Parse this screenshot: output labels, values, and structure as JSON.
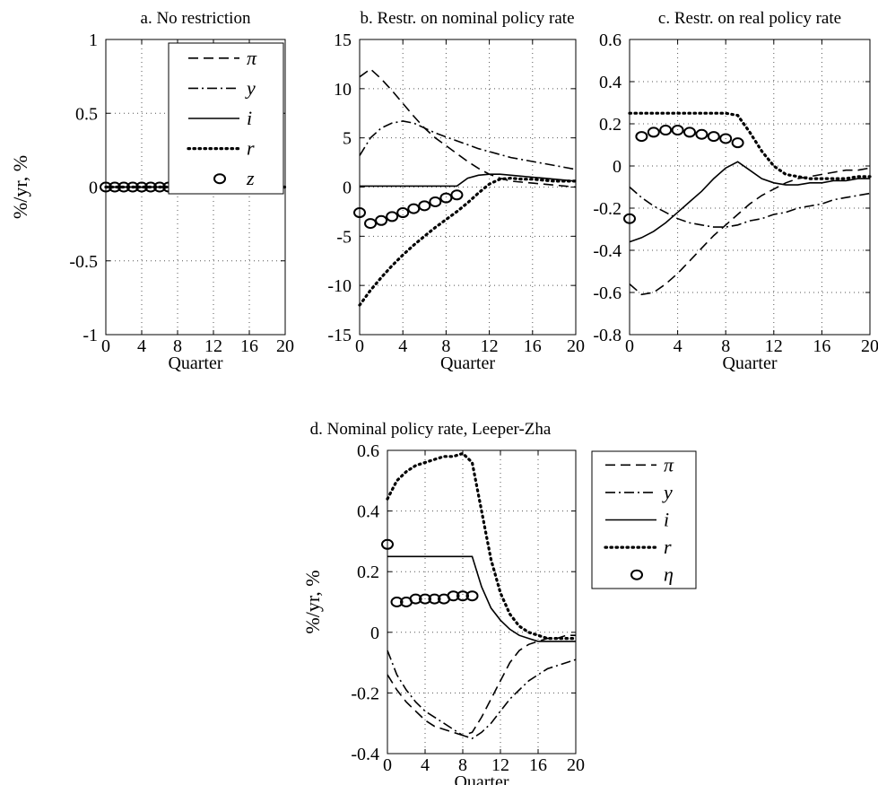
{
  "figure": {
    "colors": {
      "line": "#000000",
      "grid": "#555555",
      "background": "#ffffff"
    }
  },
  "chart_data": [
    {
      "id": "a",
      "type": "line",
      "title": "a. No restriction",
      "xlabel": "Quarter",
      "ylabel": "%/yr, %",
      "xlim": [
        0,
        20
      ],
      "ylim": [
        -1,
        1
      ],
      "xticks": [
        "0",
        "4",
        "8",
        "12",
        "16",
        "20"
      ],
      "yticks": [
        "-1",
        "-0.5",
        "0",
        "0.5",
        "1"
      ],
      "grid": true,
      "legend": {
        "placement": "top-right",
        "entries": [
          "π",
          "y",
          "i",
          "r",
          "z"
        ]
      },
      "x": [
        0,
        1,
        2,
        3,
        4,
        5,
        6,
        7,
        8,
        9,
        10,
        11,
        12,
        13,
        14,
        15,
        16,
        17,
        18,
        19,
        20
      ],
      "series": [
        {
          "name": "π",
          "style": "dash",
          "values": [
            0,
            0,
            0,
            0,
            0,
            0,
            0,
            0,
            0,
            0,
            0,
            0,
            0,
            0,
            0,
            0,
            0,
            0,
            0,
            0,
            0
          ]
        },
        {
          "name": "y",
          "style": "dashdot",
          "values": [
            0,
            0,
            0,
            0,
            0,
            0,
            0,
            0,
            0,
            0,
            0,
            0,
            0,
            0,
            0,
            0,
            0,
            0,
            0,
            0,
            0
          ]
        },
        {
          "name": "i",
          "style": "solid",
          "values": [
            0,
            0,
            0,
            0,
            0,
            0,
            0,
            0,
            0,
            0,
            0,
            0,
            0,
            0,
            0,
            0,
            0,
            0,
            0,
            0,
            0
          ]
        },
        {
          "name": "r",
          "style": "dot",
          "values": [
            0,
            0,
            0,
            0,
            0,
            0,
            0,
            0,
            0,
            0,
            0,
            0,
            0,
            0,
            0,
            0,
            0,
            0,
            0,
            0,
            0
          ]
        },
        {
          "name": "z",
          "style": "marker",
          "x": [
            0,
            1,
            2,
            3,
            4,
            5,
            6,
            7,
            8,
            9
          ],
          "values": [
            0,
            0,
            0,
            0,
            0,
            0,
            0,
            0,
            0,
            0
          ]
        }
      ]
    },
    {
      "id": "b",
      "type": "line",
      "title": "b. Restr. on nominal policy rate",
      "xlabel": "Quarter",
      "ylabel": "",
      "xlim": [
        0,
        20
      ],
      "ylim": [
        -15,
        15
      ],
      "xticks": [
        "0",
        "4",
        "8",
        "12",
        "16",
        "20"
      ],
      "yticks": [
        "-15",
        "-10",
        "-5",
        "0",
        "5",
        "10",
        "15"
      ],
      "grid": true,
      "x": [
        0,
        1,
        2,
        3,
        4,
        5,
        6,
        7,
        8,
        9,
        10,
        11,
        12,
        13,
        14,
        15,
        16,
        17,
        18,
        19,
        20
      ],
      "series": [
        {
          "name": "π",
          "style": "dash",
          "values": [
            11.2,
            12.0,
            11.0,
            9.8,
            8.5,
            7.2,
            6.0,
            5.0,
            4.2,
            3.4,
            2.6,
            1.9,
            1.3,
            0.9,
            0.6,
            0.5,
            0.4,
            0.3,
            0.2,
            0.1,
            0.0
          ]
        },
        {
          "name": "y",
          "style": "dashdot",
          "values": [
            3.2,
            5.0,
            6.0,
            6.5,
            6.7,
            6.5,
            6.0,
            5.5,
            5.1,
            4.7,
            4.3,
            3.9,
            3.6,
            3.3,
            3.0,
            2.8,
            2.6,
            2.4,
            2.2,
            2.0,
            1.8
          ]
        },
        {
          "name": "i",
          "style": "solid",
          "values": [
            0.1,
            0.1,
            0.1,
            0.1,
            0.1,
            0.1,
            0.1,
            0.1,
            0.1,
            0.1,
            0.9,
            1.2,
            1.3,
            1.3,
            1.2,
            1.1,
            1.0,
            0.9,
            0.8,
            0.7,
            0.6
          ]
        },
        {
          "name": "r",
          "style": "dot",
          "values": [
            -12.0,
            -10.5,
            -9.2,
            -8.0,
            -6.9,
            -5.9,
            -5.0,
            -4.1,
            -3.3,
            -2.5,
            -1.6,
            -0.6,
            0.3,
            0.8,
            0.9,
            0.8,
            0.8,
            0.7,
            0.6,
            0.6,
            0.6
          ]
        },
        {
          "name": "z",
          "style": "marker",
          "x": [
            0,
            1,
            2,
            3,
            4,
            5,
            6,
            7,
            8,
            9
          ],
          "values": [
            -2.6,
            -3.7,
            -3.4,
            -3.0,
            -2.6,
            -2.2,
            -1.9,
            -1.5,
            -1.1,
            -0.8
          ]
        }
      ]
    },
    {
      "id": "c",
      "type": "line",
      "title": "c. Restr. on real policy rate",
      "xlabel": "Quarter",
      "ylabel": "",
      "xlim": [
        0,
        20
      ],
      "ylim": [
        -0.8,
        0.6
      ],
      "xticks": [
        "0",
        "4",
        "8",
        "12",
        "16",
        "20"
      ],
      "yticks": [
        "-0.8",
        "-0.6",
        "-0.4",
        "-0.2",
        "0",
        "0.2",
        "0.4",
        "0.6"
      ],
      "grid": true,
      "x": [
        0,
        1,
        2,
        3,
        4,
        5,
        6,
        7,
        8,
        9,
        10,
        11,
        12,
        13,
        14,
        15,
        16,
        17,
        18,
        19,
        20
      ],
      "series": [
        {
          "name": "π",
          "style": "dash",
          "values": [
            -0.56,
            -0.61,
            -0.6,
            -0.56,
            -0.51,
            -0.45,
            -0.39,
            -0.33,
            -0.28,
            -0.23,
            -0.18,
            -0.14,
            -0.11,
            -0.08,
            -0.06,
            -0.05,
            -0.04,
            -0.03,
            -0.02,
            -0.02,
            -0.01
          ]
        },
        {
          "name": "y",
          "style": "dashdot",
          "values": [
            -0.1,
            -0.15,
            -0.19,
            -0.22,
            -0.25,
            -0.27,
            -0.28,
            -0.29,
            -0.29,
            -0.28,
            -0.26,
            -0.25,
            -0.23,
            -0.22,
            -0.2,
            -0.19,
            -0.18,
            -0.16,
            -0.15,
            -0.14,
            -0.13
          ]
        },
        {
          "name": "i",
          "style": "solid",
          "values": [
            -0.36,
            -0.34,
            -0.31,
            -0.27,
            -0.22,
            -0.17,
            -0.12,
            -0.06,
            -0.01,
            0.02,
            -0.02,
            -0.06,
            -0.08,
            -0.09,
            -0.09,
            -0.08,
            -0.08,
            -0.07,
            -0.07,
            -0.06,
            -0.06
          ]
        },
        {
          "name": "r",
          "style": "dot",
          "values": [
            0.25,
            0.25,
            0.25,
            0.25,
            0.25,
            0.25,
            0.25,
            0.25,
            0.25,
            0.24,
            0.16,
            0.07,
            0.0,
            -0.04,
            -0.05,
            -0.06,
            -0.06,
            -0.06,
            -0.06,
            -0.05,
            -0.05
          ]
        },
        {
          "name": "z",
          "style": "marker",
          "x": [
            0,
            1,
            2,
            3,
            4,
            5,
            6,
            7,
            8,
            9
          ],
          "values": [
            -0.25,
            0.14,
            0.16,
            0.17,
            0.17,
            0.16,
            0.15,
            0.14,
            0.13,
            0.11
          ]
        }
      ]
    },
    {
      "id": "d",
      "type": "line",
      "title": "d. Nominal policy rate, Leeper-Zha",
      "xlabel": "Quarter",
      "ylabel": "%/yr, %",
      "xlim": [
        0,
        20
      ],
      "ylim": [
        -0.4,
        0.6
      ],
      "xticks": [
        "0",
        "4",
        "8",
        "12",
        "16",
        "20"
      ],
      "yticks": [
        "-0.4",
        "-0.2",
        "0",
        "0.2",
        "0.4",
        "0.6"
      ],
      "grid": true,
      "legend": {
        "placement": "right",
        "entries": [
          "π",
          "y",
          "i",
          "r",
          "η"
        ]
      },
      "x": [
        0,
        1,
        2,
        3,
        4,
        5,
        6,
        7,
        8,
        9,
        10,
        11,
        12,
        13,
        14,
        15,
        16,
        17,
        18,
        19,
        20
      ],
      "series": [
        {
          "name": "π",
          "style": "dash",
          "values": [
            -0.14,
            -0.19,
            -0.23,
            -0.26,
            -0.29,
            -0.31,
            -0.32,
            -0.33,
            -0.34,
            -0.33,
            -0.28,
            -0.22,
            -0.16,
            -0.1,
            -0.06,
            -0.04,
            -0.03,
            -0.02,
            -0.02,
            -0.01,
            -0.01
          ]
        },
        {
          "name": "y",
          "style": "dashdot",
          "values": [
            -0.06,
            -0.14,
            -0.19,
            -0.23,
            -0.26,
            -0.28,
            -0.3,
            -0.32,
            -0.34,
            -0.35,
            -0.33,
            -0.3,
            -0.26,
            -0.22,
            -0.19,
            -0.16,
            -0.14,
            -0.12,
            -0.11,
            -0.1,
            -0.09
          ]
        },
        {
          "name": "i",
          "style": "solid",
          "values": [
            0.25,
            0.25,
            0.25,
            0.25,
            0.25,
            0.25,
            0.25,
            0.25,
            0.25,
            0.25,
            0.15,
            0.08,
            0.04,
            0.01,
            -0.01,
            -0.02,
            -0.03,
            -0.03,
            -0.03,
            -0.03,
            -0.03
          ]
        },
        {
          "name": "r",
          "style": "dot",
          "values": [
            0.44,
            0.5,
            0.53,
            0.55,
            0.56,
            0.57,
            0.58,
            0.58,
            0.59,
            0.56,
            0.4,
            0.24,
            0.13,
            0.06,
            0.02,
            0.0,
            -0.01,
            -0.02,
            -0.02,
            -0.02,
            -0.02
          ]
        },
        {
          "name": "η",
          "style": "marker",
          "x": [
            0,
            1,
            2,
            3,
            4,
            5,
            6,
            7,
            8,
            9
          ],
          "values": [
            0.29,
            0.1,
            0.1,
            0.11,
            0.11,
            0.11,
            0.11,
            0.12,
            0.12,
            0.12
          ]
        }
      ]
    }
  ]
}
